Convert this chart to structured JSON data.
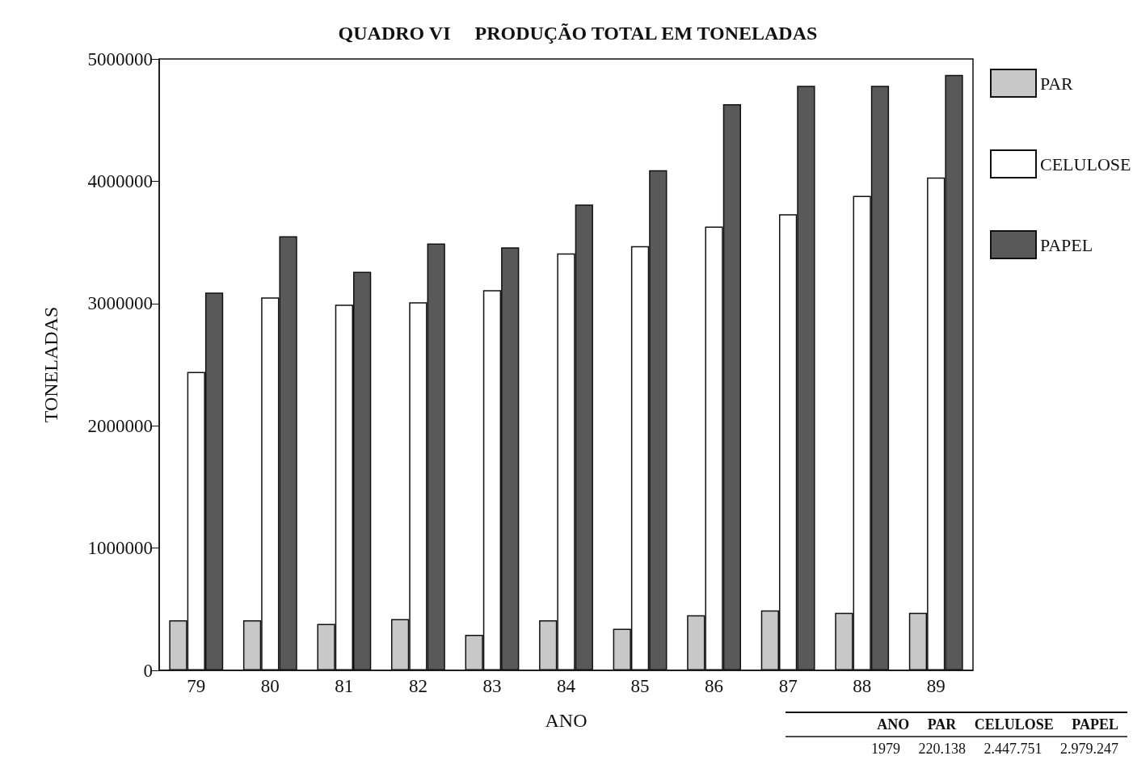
{
  "chart_data": {
    "type": "bar",
    "title": "QUADRO VI     PRODUÇÃO TOTAL EM TONELADAS",
    "xlabel": "ANO",
    "ylabel": "TONELADAS",
    "categories": [
      "79",
      "80",
      "81",
      "82",
      "83",
      "84",
      "85",
      "86",
      "87",
      "88",
      "89"
    ],
    "series": [
      {
        "name": "PAR",
        "color": "#c8c8c8",
        "values": [
          410000,
          410000,
          380000,
          420000,
          290000,
          410000,
          340000,
          450000,
          490000,
          470000,
          470000
        ]
      },
      {
        "name": "CELULOSE",
        "color": "#ffffff",
        "values": [
          2440000,
          3050000,
          2990000,
          3010000,
          3110000,
          3410000,
          3470000,
          3630000,
          3730000,
          3880000,
          4030000
        ]
      },
      {
        "name": "PAPEL",
        "color": "#595959",
        "values": [
          3090000,
          3550000,
          3260000,
          3490000,
          3460000,
          3810000,
          4090000,
          4630000,
          4780000,
          4780000,
          4870000
        ]
      }
    ],
    "ylim": [
      0,
      5000000
    ],
    "yticks": [
      0,
      1000000,
      2000000,
      3000000,
      4000000,
      5000000
    ],
    "grid": false,
    "legend": "top right",
    "annotations": [
      "ANO     PAR     CELULOSE     PAPEL",
      "1979     220.138     2.447.751     2.979.247"
    ]
  }
}
